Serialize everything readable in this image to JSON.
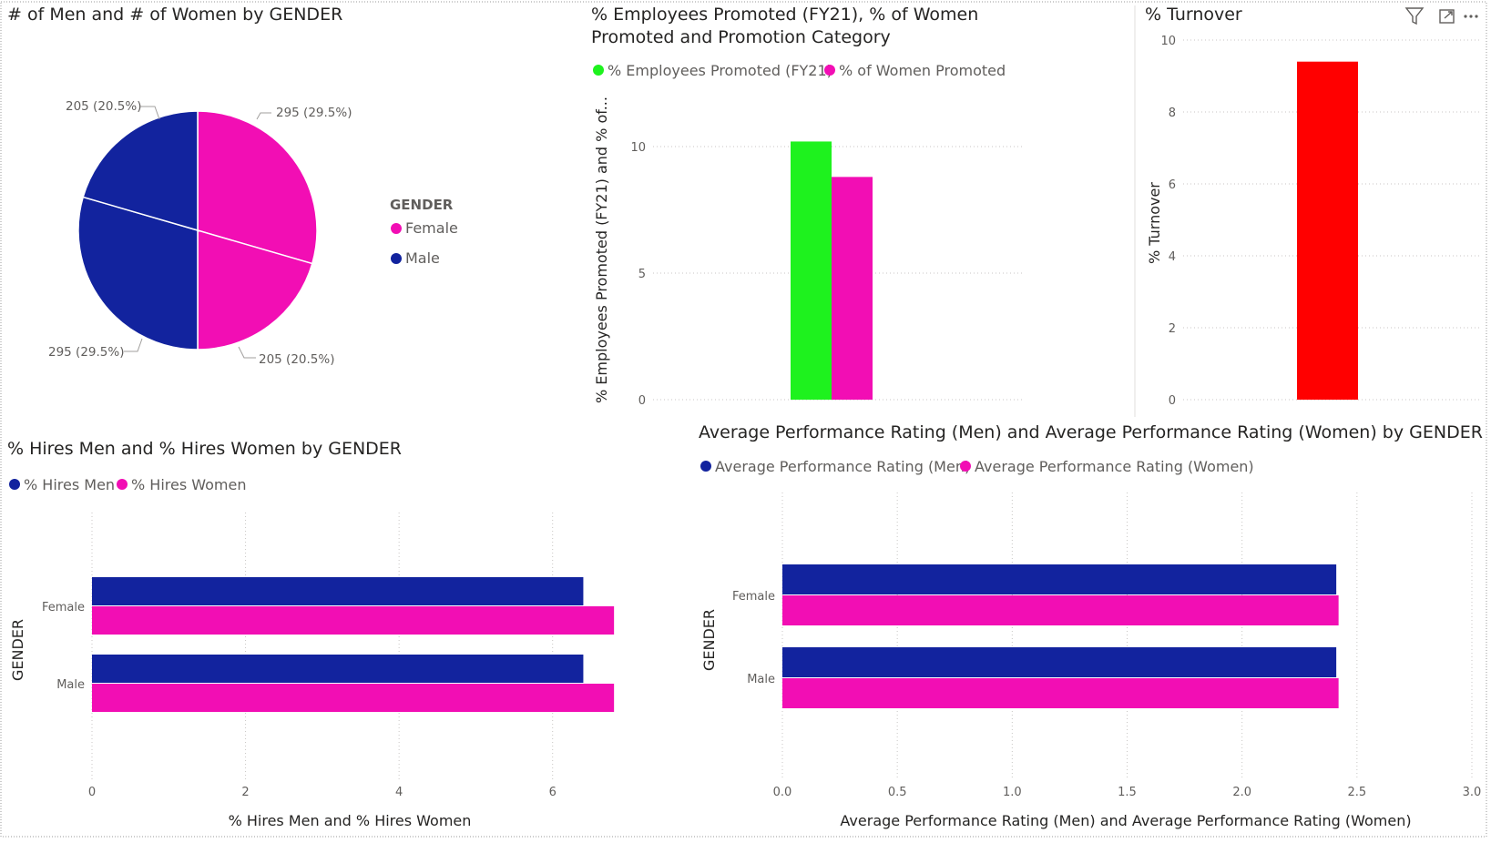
{
  "colors": {
    "female": "#f20eb4",
    "male": "#12239e",
    "promoted": "#1ef21e",
    "women_promoted": "#f20eb4",
    "turnover": "#ff0000"
  },
  "visual_header_icons": [
    "filter-icon",
    "focus-mode-icon",
    "more-options-icon"
  ],
  "chart_data": [
    {
      "id": "pie",
      "type": "pie",
      "title": "# of Men and # of Women by GENDER",
      "legend_title": "GENDER",
      "legend_position": "right",
      "slices": [
        {
          "label": "295 (29.5%)",
          "value": 295,
          "series": "# of Women",
          "category": "Female"
        },
        {
          "label": "205 (20.5%)",
          "value": 205,
          "series": "# of Men",
          "category": "Female"
        },
        {
          "label": "295 (29.5%)",
          "value": 295,
          "series": "# of Men",
          "category": "Male"
        },
        {
          "label": "205 (20.5%)",
          "value": 205,
          "series": "# of Women",
          "category": "Male"
        }
      ],
      "legend": [
        {
          "name": "Female",
          "color": "#f20eb4"
        },
        {
          "name": "Male",
          "color": "#12239e"
        }
      ]
    },
    {
      "id": "promo",
      "type": "bar",
      "title_lines": [
        "% Employees Promoted (FY21), % of Women",
        "Promoted and Promotion Category"
      ],
      "ylabel": "% Employees Promoted (FY21) and % of...",
      "ylim": [
        0,
        10
      ],
      "yticks": [
        "0",
        "5",
        "10"
      ],
      "legend_position": "top-left",
      "grid": true,
      "series": [
        {
          "name": "% Employees Promoted (FY21)",
          "color": "#1ef21e",
          "values": [
            10.2
          ]
        },
        {
          "name": "% of Women Promoted",
          "color": "#f20eb4",
          "values": [
            8.8
          ]
        }
      ]
    },
    {
      "id": "turnover",
      "type": "bar",
      "title": "% Turnover",
      "ylabel": "% Turnover",
      "ylim": [
        0,
        10
      ],
      "yticks": [
        "0",
        "2",
        "4",
        "6",
        "8",
        "10"
      ],
      "grid": true,
      "series": [
        {
          "name": "% Turnover",
          "color": "#ff0000",
          "values": [
            9.4
          ]
        }
      ]
    },
    {
      "id": "hires",
      "type": "bar",
      "orientation": "horizontal",
      "title": "% Hires Men and % Hires Women by GENDER",
      "xlabel": "% Hires Men and % Hires Women",
      "ylabel": "GENDER",
      "categories": [
        "Female",
        "Male"
      ],
      "xlim": [
        0,
        7
      ],
      "xticks": [
        "0",
        "2",
        "4",
        "6"
      ],
      "legend_position": "top-left",
      "grid": true,
      "series": [
        {
          "name": "% Hires Men",
          "color": "#12239e",
          "values": [
            6.4,
            6.4
          ]
        },
        {
          "name": "% Hires Women",
          "color": "#f20eb4",
          "values": [
            6.8,
            6.8
          ]
        }
      ]
    },
    {
      "id": "perf",
      "type": "bar",
      "orientation": "horizontal",
      "title": "Average Performance Rating (Men) and Average Performance Rating (Women) by GENDER",
      "xlabel": "Average Performance Rating (Men) and Average Performance Rating (Women)",
      "ylabel": "GENDER",
      "categories": [
        "Female",
        "Male"
      ],
      "xlim": [
        0,
        3.0
      ],
      "xticks": [
        "0.0",
        "0.5",
        "1.0",
        "1.5",
        "2.0",
        "2.5",
        "3.0"
      ],
      "legend_position": "top-left",
      "grid": true,
      "series": [
        {
          "name": "Average Performance Rating (Men)",
          "color": "#12239e",
          "values": [
            2.41,
            2.41
          ]
        },
        {
          "name": "Average Performance Rating (Women)",
          "color": "#f20eb4",
          "values": [
            2.42,
            2.42
          ]
        }
      ]
    }
  ]
}
